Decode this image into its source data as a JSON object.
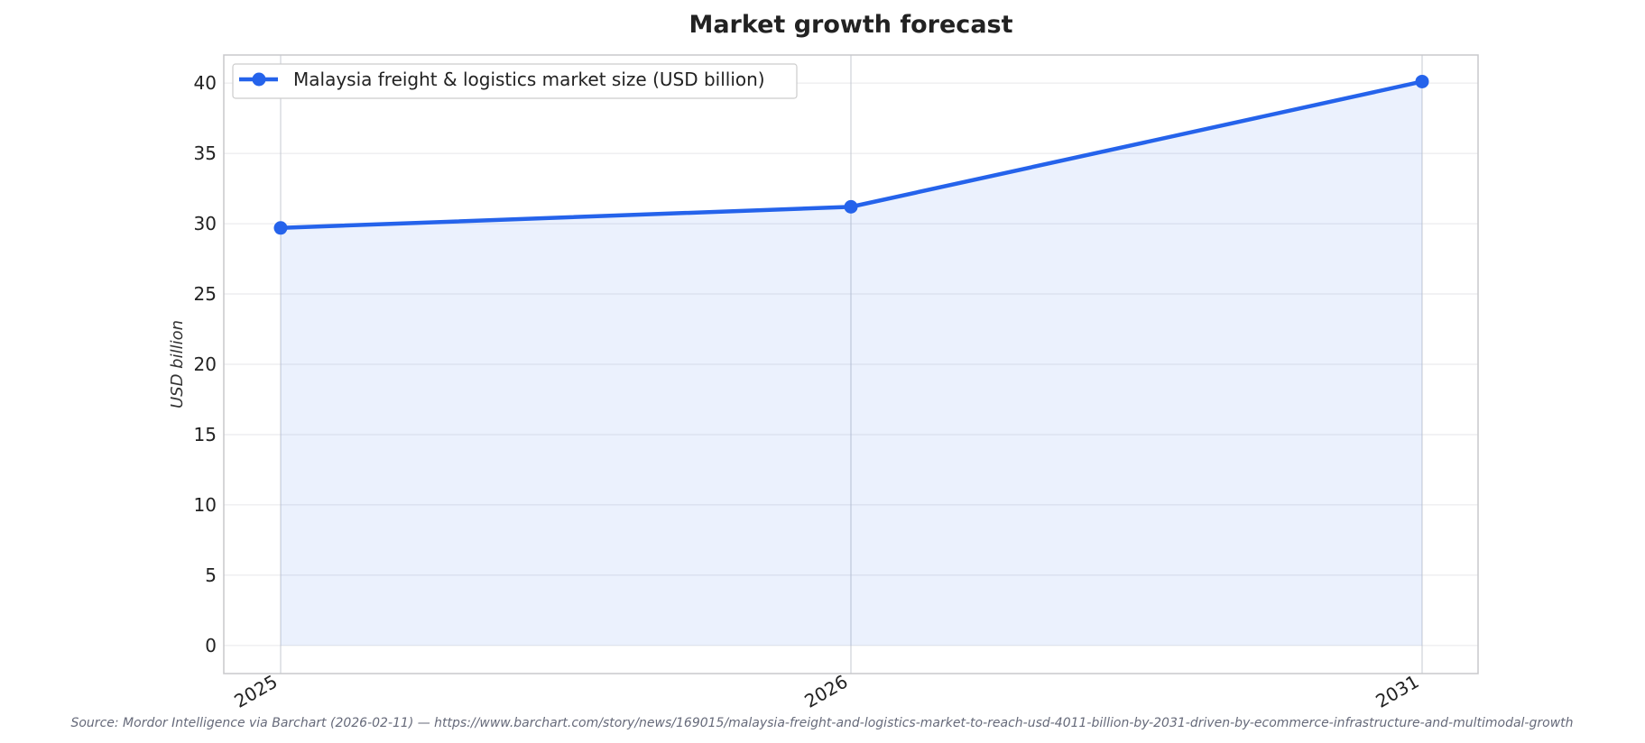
{
  "chart_data": {
    "type": "line",
    "title": "Market growth forecast",
    "ylabel": "USD billion",
    "xlabel": "",
    "x": [
      "2025",
      "2026",
      "2031"
    ],
    "series": [
      {
        "name": "Malaysia freight & logistics market size (USD billion)",
        "values": [
          29.7,
          31.2,
          40.11
        ],
        "color": "#2563eb"
      }
    ],
    "ylim": [
      -2,
      42
    ],
    "yticks": [
      0,
      5,
      10,
      15,
      20,
      25,
      30,
      35,
      40
    ],
    "area_fill": true,
    "grid": true,
    "legend_position": "top-left",
    "source": "Source: Mordor Intelligence via Barchart (2026-02-11) — https://www.barchart.com/story/news/169015/malaysia-freight-and-logistics-market-to-reach-usd-4011-billion-by-2031-driven-by-ecommerce-infrastructure-and-multimodal-growth"
  }
}
